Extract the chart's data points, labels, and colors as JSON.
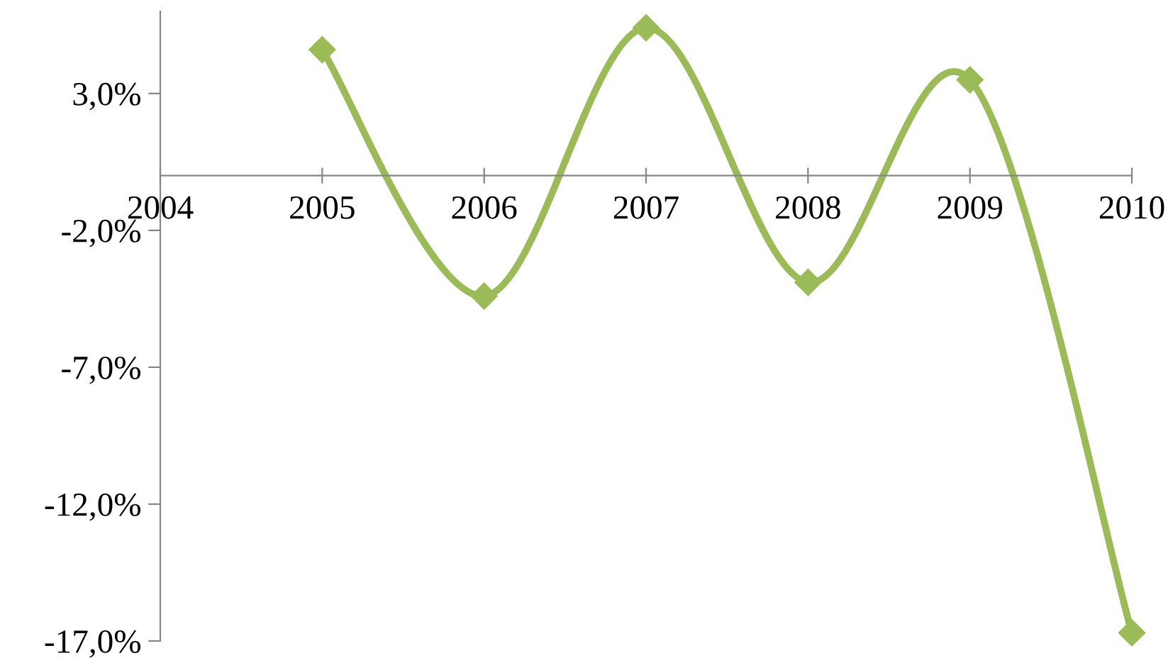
{
  "chart_data": {
    "type": "line",
    "x": [
      2005,
      2006,
      2007,
      2008,
      2009,
      2010
    ],
    "series": [
      {
        "color": "#9bbb59",
        "values": [
          4.6,
          -4.4,
          5.4,
          -3.9,
          3.5,
          -16.7
        ]
      }
    ],
    "xlim": [
      2004,
      2010
    ],
    "xticks": [
      2004,
      2005,
      2006,
      2007,
      2008,
      2009,
      2010
    ],
    "ylim": [
      -17,
      6
    ],
    "yticks": [
      {
        "value": 3,
        "label": "3,0%"
      },
      {
        "value": -2,
        "label": "-2,0%"
      },
      {
        "value": -7,
        "label": "-7,0%"
      },
      {
        "value": -12,
        "label": "-12,0%"
      },
      {
        "value": -17,
        "label": "-17,0%"
      }
    ],
    "marker": "diamond",
    "line_style": "solid",
    "grid": false,
    "legend": false
  }
}
